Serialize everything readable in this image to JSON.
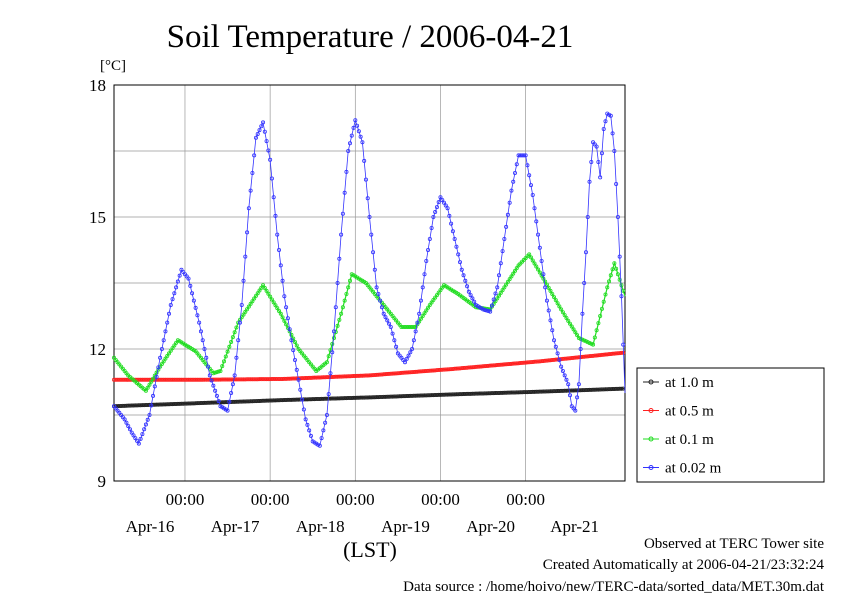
{
  "chart_data": {
    "type": "line",
    "title": "Soil Temperature / 2006-04-21",
    "yunit": "[°C]",
    "xlabel": "(LST)",
    "ylim": [
      9,
      18
    ],
    "yticks": [
      9,
      12,
      15,
      18
    ],
    "xlim": [
      0,
      144
    ],
    "x_days": [
      {
        "time_label": "00:00",
        "date_label": "Apr-16",
        "x": 20
      },
      {
        "time_label": "00:00",
        "date_label": "Apr-17",
        "x": 44
      },
      {
        "time_label": "00:00",
        "date_label": "Apr-18",
        "x": 68
      },
      {
        "time_label": "00:00",
        "date_label": "Apr-19",
        "x": 92
      },
      {
        "time_label": "00:00",
        "date_label": "Apr-20",
        "x": 116
      }
    ],
    "x_date_offset_note": "",
    "grid": true,
    "legend_position": "right",
    "series": [
      {
        "name": "at 1.0 m",
        "color": "#222222",
        "points": [
          [
            0,
            10.7
          ],
          [
            24,
            10.77
          ],
          [
            48,
            10.84
          ],
          [
            72,
            10.9
          ],
          [
            96,
            10.97
          ],
          [
            120,
            11.03
          ],
          [
            144,
            11.1
          ]
        ]
      },
      {
        "name": "at 0.5 m",
        "color": "#ff2020",
        "points": [
          [
            0,
            11.3
          ],
          [
            24,
            11.3
          ],
          [
            48,
            11.32
          ],
          [
            72,
            11.4
          ],
          [
            96,
            11.55
          ],
          [
            120,
            11.72
          ],
          [
            144,
            11.92
          ]
        ]
      },
      {
        "name": "at 0.1 m",
        "color": "#22dd22",
        "points": [
          [
            0,
            11.8
          ],
          [
            4,
            11.4
          ],
          [
            9,
            11.05
          ],
          [
            13,
            11.6
          ],
          [
            18,
            12.2
          ],
          [
            23,
            11.95
          ],
          [
            28,
            11.45
          ],
          [
            30,
            11.5
          ],
          [
            35,
            12.6
          ],
          [
            42,
            13.45
          ],
          [
            47,
            12.8
          ],
          [
            52,
            12.0
          ],
          [
            57,
            11.5
          ],
          [
            60,
            11.7
          ],
          [
            64,
            12.8
          ],
          [
            67,
            13.7
          ],
          [
            71,
            13.5
          ],
          [
            76,
            13.0
          ],
          [
            81,
            12.5
          ],
          [
            85,
            12.5
          ],
          [
            89,
            13.0
          ],
          [
            93,
            13.45
          ],
          [
            97,
            13.25
          ],
          [
            102,
            12.95
          ],
          [
            106,
            12.9
          ],
          [
            110,
            13.4
          ],
          [
            114,
            13.9
          ],
          [
            117,
            14.15
          ],
          [
            121,
            13.6
          ],
          [
            126,
            12.9
          ],
          [
            131,
            12.25
          ],
          [
            135,
            12.1
          ],
          [
            139,
            13.4
          ],
          [
            141,
            13.95
          ],
          [
            144,
            13.2
          ]
        ]
      },
      {
        "name": "at 0.02 m",
        "color": "#3333ff",
        "points": [
          [
            0,
            10.7
          ],
          [
            3,
            10.4
          ],
          [
            5,
            10.1
          ],
          [
            7,
            9.85
          ],
          [
            10,
            10.5
          ],
          [
            13,
            11.8
          ],
          [
            16,
            13.0
          ],
          [
            19,
            13.8
          ],
          [
            21,
            13.6
          ],
          [
            24,
            12.6
          ],
          [
            27,
            11.4
          ],
          [
            30,
            10.7
          ],
          [
            32,
            10.6
          ],
          [
            34,
            11.4
          ],
          [
            36,
            13.0
          ],
          [
            38,
            15.2
          ],
          [
            40,
            16.8
          ],
          [
            42,
            17.15
          ],
          [
            44,
            16.3
          ],
          [
            46,
            14.6
          ],
          [
            48,
            13.2
          ],
          [
            50,
            12.2
          ],
          [
            52,
            11.3
          ],
          [
            54,
            10.4
          ],
          [
            56,
            9.9
          ],
          [
            58,
            9.8
          ],
          [
            60,
            10.5
          ],
          [
            62,
            12.4
          ],
          [
            64,
            14.6
          ],
          [
            66,
            16.5
          ],
          [
            68,
            17.2
          ],
          [
            70,
            16.7
          ],
          [
            72,
            15.0
          ],
          [
            74,
            13.4
          ],
          [
            76,
            12.8
          ],
          [
            78,
            12.5
          ],
          [
            80,
            11.9
          ],
          [
            82,
            11.7
          ],
          [
            84,
            12.0
          ],
          [
            86,
            12.8
          ],
          [
            88,
            14.0
          ],
          [
            90,
            15.0
          ],
          [
            92,
            15.45
          ],
          [
            94,
            15.2
          ],
          [
            96,
            14.5
          ],
          [
            98,
            13.8
          ],
          [
            100,
            13.3
          ],
          [
            102,
            13.0
          ],
          [
            104,
            12.9
          ],
          [
            106,
            12.85
          ],
          [
            108,
            13.4
          ],
          [
            110,
            14.5
          ],
          [
            112,
            15.6
          ],
          [
            114,
            16.4
          ],
          [
            116,
            16.4
          ],
          [
            118,
            15.5
          ],
          [
            120,
            14.3
          ],
          [
            122,
            13.1
          ],
          [
            124,
            12.2
          ],
          [
            126,
            11.6
          ],
          [
            128,
            11.2
          ],
          [
            129,
            10.7
          ],
          [
            130,
            10.6
          ],
          [
            131,
            11.2
          ],
          [
            132,
            12.8
          ],
          [
            133,
            14.2
          ],
          [
            134,
            15.8
          ],
          [
            135,
            16.7
          ],
          [
            136,
            16.6
          ],
          [
            137,
            15.9
          ],
          [
            138,
            17.0
          ],
          [
            139,
            17.35
          ],
          [
            140,
            17.3
          ],
          [
            141,
            16.5
          ],
          [
            142,
            15.0
          ],
          [
            143,
            13.2
          ],
          [
            144,
            11.0
          ]
        ]
      }
    ]
  },
  "footer": {
    "line1": "Observed at TERC Tower site",
    "line2": "Created Automatically at 2006-04-21/23:32:24",
    "line3": "Data source : /home/hoivo/new/TERC-data/sorted_data/MET.30m.dat"
  }
}
